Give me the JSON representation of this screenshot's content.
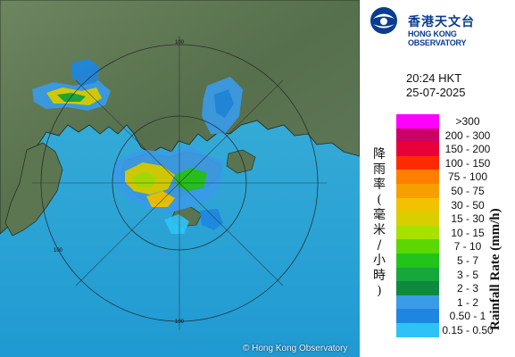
{
  "organization": {
    "name_zh": "香港天文台",
    "name_en": "HONG KONG OBSERVATORY"
  },
  "timestamp": {
    "time": "20:24 HKT",
    "date": "25-07-2025"
  },
  "map": {
    "copyright": "© Hong Kong Observatory",
    "ring_label": "100",
    "colors": {
      "sea": "#2aa7d8",
      "land": "#5e7a52"
    }
  },
  "legend": {
    "title_zh": "降雨率(毫米/小時)",
    "title_en": "Rainfall Rate (mm/h)",
    "items": [
      {
        "label": ">300",
        "color": "#ff00ff"
      },
      {
        "label": "200 - 300",
        "color": "#cc0066"
      },
      {
        "label": "150 - 200",
        "color": "#e8003a"
      },
      {
        "label": "100 - 150",
        "color": "#ff2a00"
      },
      {
        "label": "75 - 100",
        "color": "#ff7f00"
      },
      {
        "label": "50 - 75",
        "color": "#f5a000"
      },
      {
        "label": "30 - 50",
        "color": "#f2c200"
      },
      {
        "label": "15 - 30",
        "color": "#d9cf00"
      },
      {
        "label": "10 - 15",
        "color": "#a8e000"
      },
      {
        "label": "7 - 10",
        "color": "#5ad800"
      },
      {
        "label": "5 - 7",
        "color": "#22c41a"
      },
      {
        "label": "3 - 5",
        "color": "#16a83a"
      },
      {
        "label": "2 - 3",
        "color": "#0d8a3e"
      },
      {
        "label": "1 - 2",
        "color": "#3a9be8"
      },
      {
        "label": "0.50 - 1",
        "color": "#1e86e0"
      },
      {
        "label": "0.15 - 0.50",
        "color": "#2ec3f5"
      }
    ]
  }
}
